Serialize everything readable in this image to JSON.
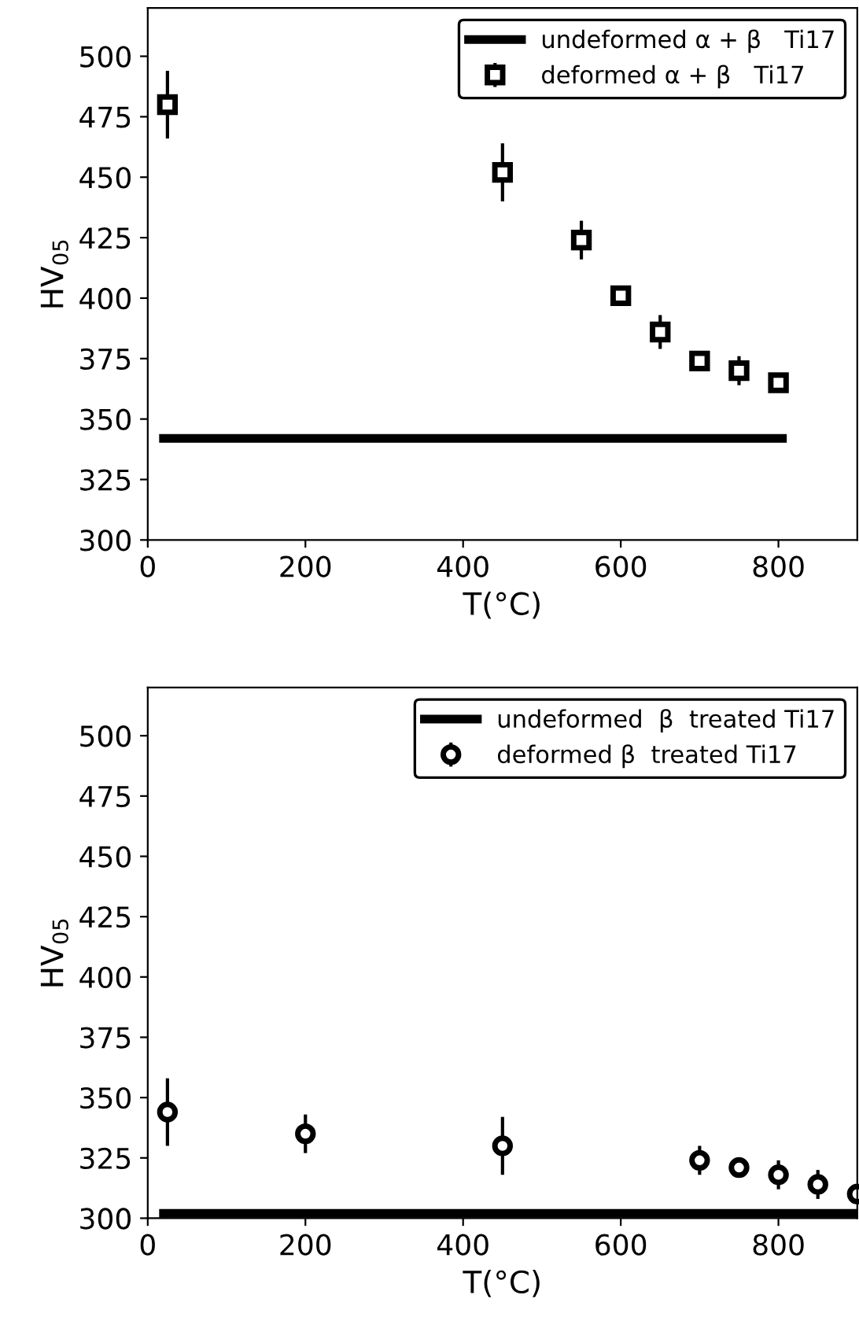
{
  "chart_data": [
    {
      "type": "scatter",
      "xlabel": "T(°C)",
      "ylabel": "HV$_{05}$",
      "xlim": [
        0,
        900
      ],
      "ylim": [
        300,
        520
      ],
      "xticks": [
        0,
        200,
        400,
        600,
        800
      ],
      "yticks": [
        300,
        325,
        350,
        375,
        400,
        425,
        450,
        475,
        500
      ],
      "grid": false,
      "legend": "top right",
      "series": [
        {
          "name": "undeformed α + β   Ti17",
          "type": "line",
          "color": "#000000",
          "marker": "none",
          "line_style": "solid",
          "x": [
            20,
            805
          ],
          "values": [
            342,
            342
          ]
        },
        {
          "name": "deformed α + β   Ti17",
          "color": "#000000",
          "marker": "square",
          "x": [
            25,
            450,
            550,
            600,
            650,
            700,
            750,
            800
          ],
          "values": [
            480,
            452,
            424,
            401,
            386,
            374,
            370,
            365
          ],
          "errors": [
            [
              466,
              494
            ],
            [
              440,
              464
            ],
            [
              416,
              432
            ],
            [
              397,
              405
            ],
            [
              379,
              393
            ],
            [
              370,
              378
            ],
            [
              364,
              376
            ],
            [
              363,
              367
            ]
          ]
        }
      ]
    },
    {
      "type": "scatter",
      "xlabel": "T(°C)",
      "ylabel": "HV$_{05}$",
      "xlim": [
        0,
        900
      ],
      "ylim": [
        300,
        520
      ],
      "xticks": [
        0,
        200,
        400,
        600,
        800
      ],
      "yticks": [
        300,
        325,
        350,
        375,
        400,
        425,
        450,
        475,
        500
      ],
      "grid": false,
      "legend": "top right",
      "series": [
        {
          "name": "undeformed  β  treated Ti17",
          "type": "line",
          "color": "#000000",
          "marker": "none",
          "line_style": "solid",
          "x": [
            20,
            895
          ],
          "values": [
            302,
            302
          ]
        },
        {
          "name": "deformed β  treated Ti17",
          "color": "#000000",
          "marker": "circle",
          "x": [
            25,
            200,
            450,
            700,
            750,
            800,
            850,
            900
          ],
          "values": [
            344,
            335,
            330,
            324,
            321,
            318,
            314,
            310
          ],
          "errors": [
            [
              330,
              358
            ],
            [
              327,
              343
            ],
            [
              318,
              342
            ],
            [
              318,
              330
            ],
            [
              318,
              324
            ],
            [
              312,
              324
            ],
            [
              308,
              320
            ],
            [
              307,
              313
            ]
          ]
        }
      ]
    }
  ]
}
